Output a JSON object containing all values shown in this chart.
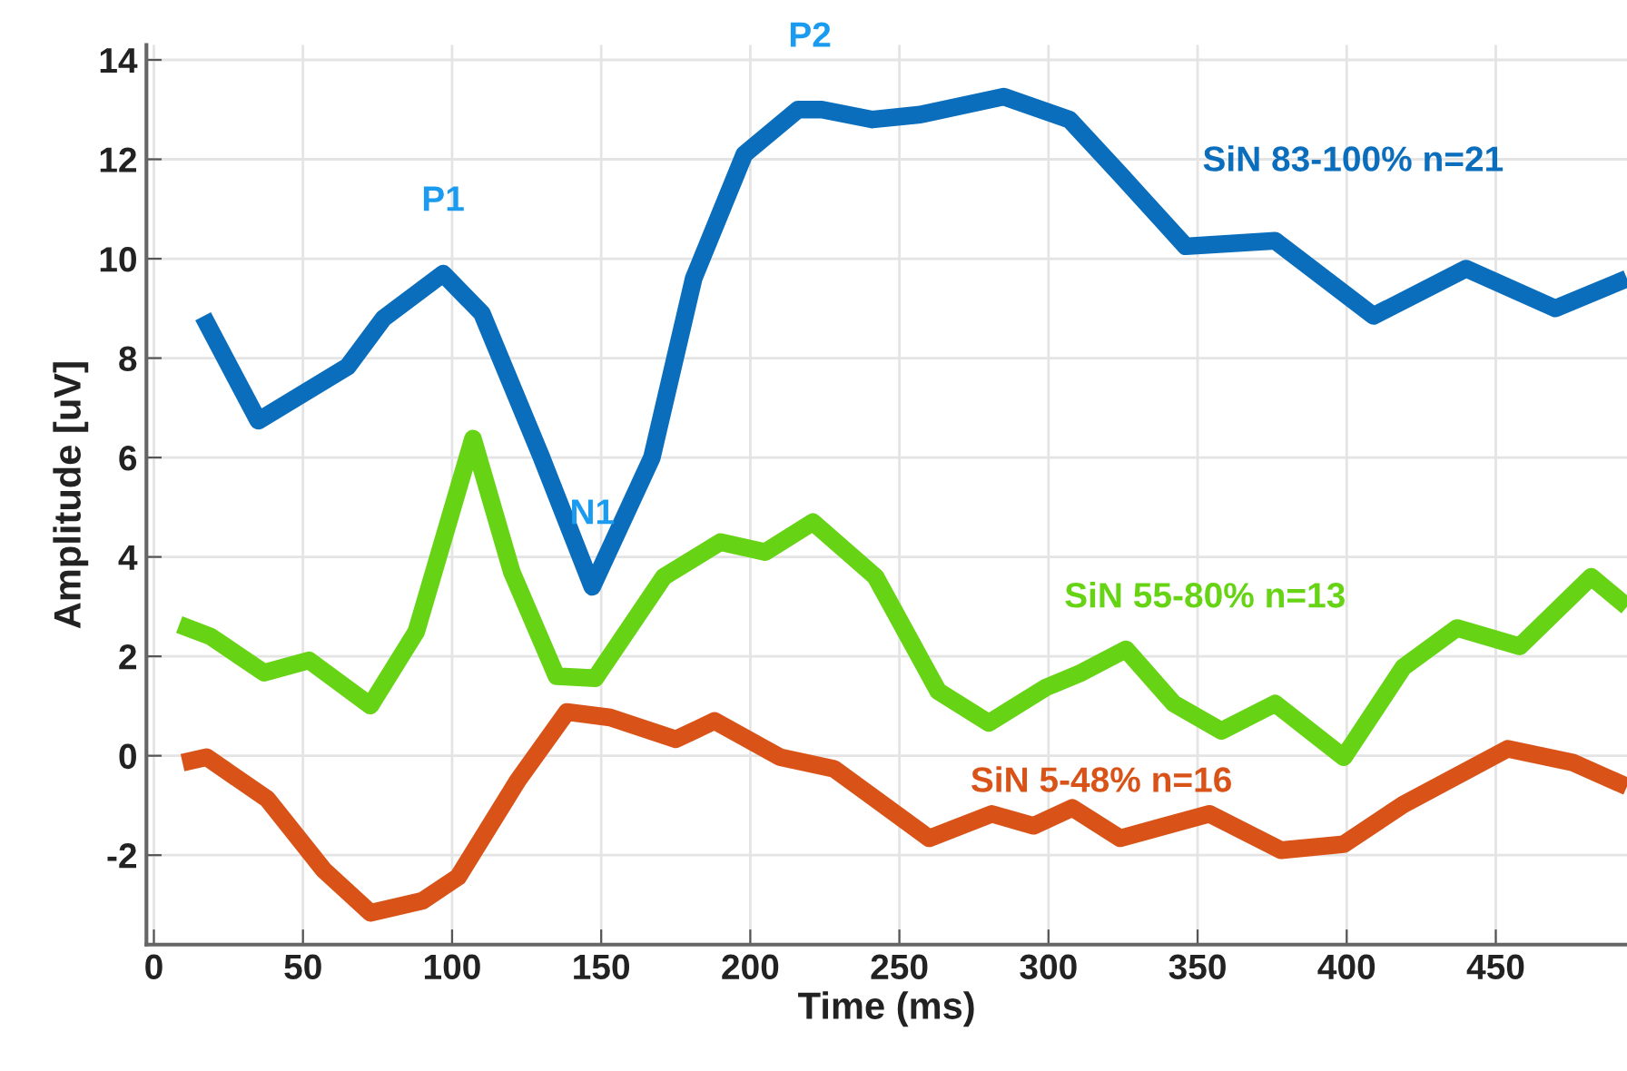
{
  "chart_data": {
    "type": "line",
    "xlabel": "Time (ms)",
    "ylabel": "Amplitude [uV]",
    "xlim": [
      -2.5,
      494
    ],
    "ylim": [
      -3.8,
      14.3
    ],
    "xticks": [
      0,
      50,
      100,
      150,
      200,
      250,
      300,
      350,
      400,
      450
    ],
    "yticks": [
      -2,
      0,
      2,
      4,
      6,
      8,
      10,
      12,
      14
    ],
    "grid": true,
    "legend": false,
    "marker": "none",
    "line_style": "solid",
    "series": [
      {
        "name": "SiN 83-100% n=21",
        "color": "#0a6ebd",
        "x": [
          16.5,
          35,
          65,
          77,
          97,
          110,
          130,
          147,
          167,
          181,
          198,
          216,
          224,
          241,
          257,
          285,
          307,
          324,
          346,
          376,
          409,
          440,
          470,
          494
        ],
        "values": [
          8.84,
          6.74,
          7.83,
          8.8,
          9.7,
          8.9,
          6.0,
          3.4,
          6.0,
          9.6,
          12.1,
          13.0,
          13.0,
          12.8,
          12.9,
          13.26,
          12.8,
          11.7,
          10.25,
          10.36,
          8.85,
          9.8,
          9.0,
          9.6
        ]
      },
      {
        "name": "SiN 55-80% n=13",
        "color": "#66d314",
        "x": [
          8.5,
          19,
          37,
          52,
          72.6,
          88,
          107,
          120,
          135,
          148,
          171,
          190,
          205,
          221,
          242,
          263,
          280,
          299,
          311,
          326,
          342,
          358,
          376,
          399,
          419,
          437,
          458,
          482,
          494
        ],
        "values": [
          2.64,
          2.4,
          1.67,
          1.92,
          1.01,
          2.5,
          6.38,
          3.7,
          1.6,
          1.56,
          3.6,
          4.3,
          4.1,
          4.7,
          3.6,
          1.3,
          0.66,
          1.37,
          1.67,
          2.14,
          1.05,
          0.5,
          1.05,
          -0.03,
          1.78,
          2.57,
          2.2,
          3.6,
          3.0
        ]
      },
      {
        "name": "SiN 5-48% n=16",
        "color": "#d95319",
        "x": [
          9.6,
          17.7,
          38,
          57,
          72.6,
          90,
          102,
          122,
          138.5,
          153,
          175,
          188,
          210,
          228,
          242,
          260,
          281,
          295,
          308,
          324,
          354,
          378,
          399,
          419,
          454,
          476,
          494
        ],
        "values": [
          -0.14,
          -0.03,
          -0.87,
          -2.3,
          -3.16,
          -2.92,
          -2.44,
          -0.5,
          0.88,
          0.77,
          0.33,
          0.7,
          -0.03,
          -0.26,
          -0.87,
          -1.66,
          -1.17,
          -1.41,
          -1.05,
          -1.66,
          -1.17,
          -1.9,
          -1.78,
          -0.98,
          0.14,
          -0.14,
          -0.62
        ]
      }
    ],
    "annotations": [
      {
        "text": "P1",
        "x": 97,
        "y": 9.7
      },
      {
        "text": "N1",
        "x": 147,
        "y": 3.4
      },
      {
        "text": "P2",
        "x": 220,
        "y": 13.0
      }
    ]
  }
}
